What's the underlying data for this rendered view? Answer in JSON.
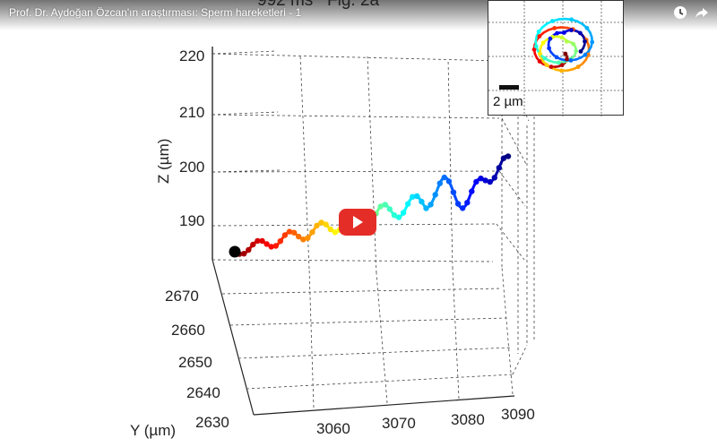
{
  "video": {
    "title": "Prof. Dr. Aydoğan Özcan'ın araştırması: Sperm hareketleri - 1",
    "overhead_time": "992 ms",
    "overhead_fig": "Fig. 2a"
  },
  "controls": {
    "watch_later_icon": "clock-icon",
    "share_icon": "share-arrow-icon",
    "play_icon": "play-icon"
  },
  "inset": {
    "scale_bar_label": "2 µm"
  },
  "colors": {
    "play_button": "#e52d27",
    "trajectory_start": "#000000",
    "trajectory_end": "#0a1f8f"
  },
  "chart_data": {
    "type": "line3d",
    "zlabel": "Z (µm)",
    "ylabel": "Y (µm)",
    "xlabel": "",
    "z_ticks": [
      "220",
      "210",
      "200",
      "190"
    ],
    "y_ticks": [
      "2670",
      "2660",
      "2650",
      "2640",
      "2630"
    ],
    "x_ticks": [
      "3060",
      "3070",
      "3080",
      "3090"
    ],
    "grid": true,
    "colormap": "jet (time: red at start, blue at end)",
    "start_marker": "black dot"
  }
}
